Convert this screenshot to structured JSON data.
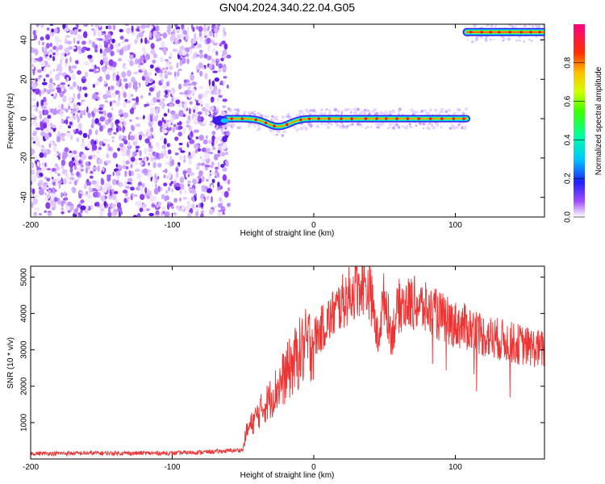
{
  "title": "GN04.2024.340.22.04.G05",
  "chart_data": [
    {
      "type": "heatmap",
      "xlabel": "Height of straight line (km)",
      "ylabel": "Frequency (Hz)",
      "xlim": [
        -200,
        163
      ],
      "ylim": [
        -50,
        48
      ],
      "xticks": [
        -200,
        -100,
        0,
        100
      ],
      "yticks": [
        -40,
        -20,
        0,
        20,
        40
      ],
      "colorbar": {
        "label": "Normalized spectral amplitude",
        "range": [
          0,
          1
        ],
        "ticks": [
          "0.0",
          "0.2",
          "0.4",
          "0.6",
          "0.8"
        ]
      },
      "features": {
        "noise_region_x": [
          -200,
          -60
        ],
        "signal_band": {
          "x": [
            -62,
            108
          ],
          "freq": 0,
          "dip_x": -25,
          "dip_freq": -4
        },
        "upper_band": {
          "x": [
            108,
            163
          ],
          "freq": 44
        }
      }
    },
    {
      "type": "line",
      "xlabel": "Height of straight line (km)",
      "ylabel": "SNR (10 * v/v)",
      "xlim": [
        -200,
        163
      ],
      "ylim": [
        0,
        5300
      ],
      "xticks": [
        -200,
        -100,
        0,
        100
      ],
      "yticks": [
        1000,
        2000,
        3000,
        4000,
        5000
      ],
      "series": [
        {
          "color": "#ee3333",
          "x": [
            -200,
            -150,
            -100,
            -70,
            -50,
            -48,
            -45,
            -40,
            -30,
            -20,
            -10,
            0,
            10,
            20,
            30,
            35,
            40,
            45,
            50,
            55,
            60,
            70,
            80,
            90,
            100,
            110,
            120,
            130,
            140,
            150,
            163
          ],
          "y": [
            150,
            160,
            160,
            200,
            250,
            700,
            900,
            1200,
            1700,
            2300,
            2900,
            3300,
            3800,
            4300,
            4700,
            4800,
            4600,
            3300,
            4500,
            3400,
            4200,
            4300,
            4100,
            3900,
            3700,
            3600,
            3400,
            3300,
            3200,
            3100,
            3000
          ]
        }
      ]
    }
  ]
}
